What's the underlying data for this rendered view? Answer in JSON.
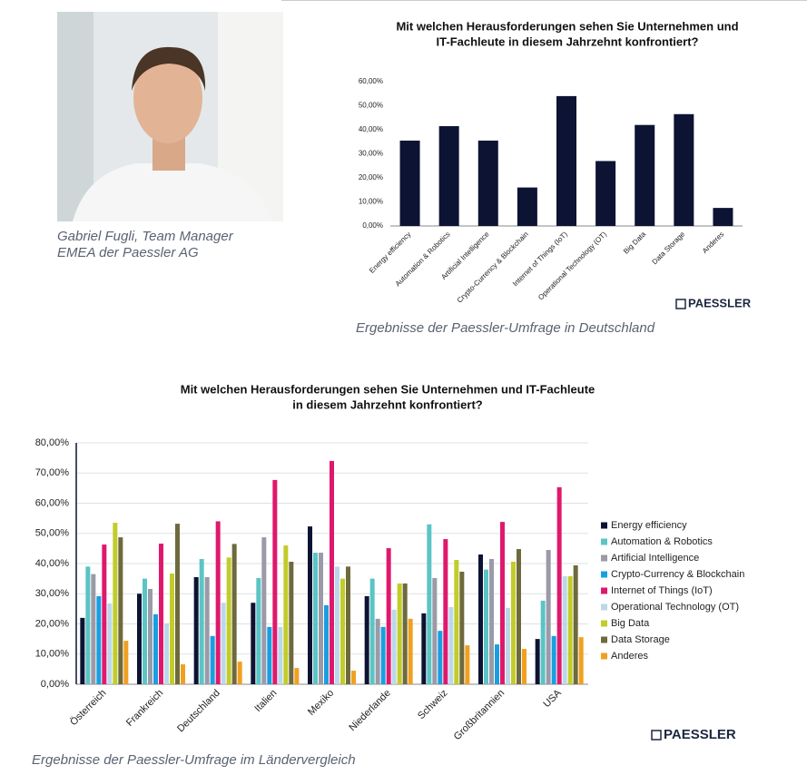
{
  "photo_caption": [
    "Gabriel Fugli, Team Manager",
    "EMEA der Paessler AG"
  ],
  "brand": "PAESSLER",
  "chart_data": [
    {
      "type": "bar",
      "title": [
        "Mit welchen Herausforderungen sehen Sie Unternehmen und",
        "IT-Fachleute in diesem Jahrzehnt konfrontiert?"
      ],
      "caption": "Ergebnisse der Paessler-Umfrage in Deutschland",
      "categories": [
        "Energy efficiency",
        "Automation & Robotics",
        "Artificial Intelligence",
        "Crypto-Currency & Blockchain",
        "Internet of Things (IoT)",
        "Operational Technology (OT)",
        "Big Data",
        "Data Storage",
        "Anderes"
      ],
      "values": [
        35.5,
        41.5,
        35.5,
        16,
        54,
        27,
        42,
        46.5,
        7.5
      ],
      "color": "#0d1333",
      "ylim": [
        0,
        60
      ],
      "yticks": [
        {
          "value": 0,
          "label": "0,00%"
        },
        {
          "value": 10,
          "label": "10,00%"
        },
        {
          "value": 20,
          "label": "20,00%"
        },
        {
          "value": 30,
          "label": "30,00%"
        },
        {
          "value": 40,
          "label": "40,00%"
        },
        {
          "value": 50,
          "label": "50,00%"
        },
        {
          "value": 60,
          "label": "60,00%"
        }
      ],
      "grid": false
    },
    {
      "type": "bar",
      "title": [
        "Mit welchen Herausforderungen sehen Sie Unternehmen und IT-Fachleute",
        "in diesem Jahrzehnt konfrontiert?"
      ],
      "caption": "Ergebnisse der Paessler-Umfrage im Ländervergleich",
      "categories": [
        "Österreich",
        "Frankreich",
        "Deutschland",
        "Italien",
        "Mexiko",
        "Niederlande",
        "Schweiz",
        "Großbritannien",
        "USA"
      ],
      "series": [
        {
          "name": "Energy efficiency",
          "color": "#0d1333",
          "values": [
            22,
            30,
            35.5,
            27,
            52.3,
            29.2,
            23.5,
            43,
            15
          ]
        },
        {
          "name": "Automation & Robotics",
          "color": "#5bc4c4",
          "values": [
            39,
            35,
            41.5,
            35.2,
            43.6,
            35,
            53,
            38,
            27.7
          ]
        },
        {
          "name": "Artificial Intelligence",
          "color": "#9a9aa8",
          "values": [
            36.5,
            31.6,
            35.5,
            48.7,
            43.6,
            21.7,
            35.2,
            41.5,
            44.5
          ]
        },
        {
          "name": "Crypto-Currency & Blockchain",
          "color": "#1a9ee0",
          "values": [
            29.2,
            23.2,
            16,
            19,
            26.2,
            19,
            17.7,
            13.2,
            16
          ]
        },
        {
          "name": "Internet of Things (IoT)",
          "color": "#e0186c",
          "values": [
            46.3,
            46.6,
            54,
            67.7,
            74,
            45.1,
            48.1,
            53.8,
            65.3
          ]
        },
        {
          "name": "Operational Technology (OT)",
          "color": "#bcd7ea",
          "values": [
            26.8,
            20.2,
            27,
            19,
            39,
            24.7,
            25.6,
            25.3,
            35.8
          ]
        },
        {
          "name": "Big Data",
          "color": "#c2cc2a",
          "values": [
            53.5,
            36.7,
            42,
            46,
            35,
            33.4,
            41.2,
            40.6,
            35.8
          ]
        },
        {
          "name": "Data Storage",
          "color": "#6e6a3c",
          "values": [
            48.7,
            53.2,
            46.5,
            40.6,
            39,
            33.4,
            37.3,
            44.8,
            39.4
          ]
        },
        {
          "name": "Anderes",
          "color": "#f0a020",
          "values": [
            14.4,
            6.6,
            7.5,
            5.4,
            4.5,
            21.7,
            12.9,
            11.7,
            15.6
          ]
        }
      ],
      "ylim": [
        0,
        80
      ],
      "yticks": [
        {
          "value": 0,
          "label": "0,00%"
        },
        {
          "value": 10,
          "label": "10,00%"
        },
        {
          "value": 20,
          "label": "20,00%"
        },
        {
          "value": 30,
          "label": "30,00%"
        },
        {
          "value": 40,
          "label": "40,00%"
        },
        {
          "value": 50,
          "label": "50,00%"
        },
        {
          "value": 60,
          "label": "60,00%"
        },
        {
          "value": 70,
          "label": "70,00%"
        },
        {
          "value": 80,
          "label": "80,00%"
        }
      ],
      "grid": true,
      "legend": "right"
    }
  ]
}
